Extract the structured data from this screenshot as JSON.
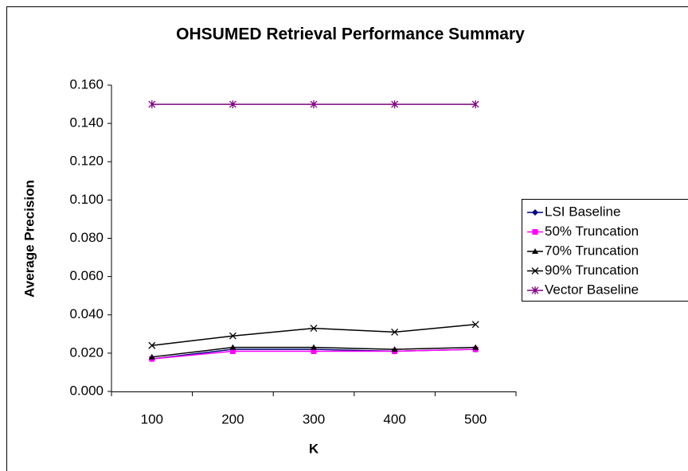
{
  "chart_data": {
    "type": "line",
    "title": "OHSUMED Retrieval Performance Summary",
    "x_label": "K",
    "y_label": "Average Precision",
    "categories": [
      "100",
      "200",
      "300",
      "400",
      "500"
    ],
    "series": [
      {
        "name": "LSI Baseline",
        "color": "#000080",
        "marker": "diamond",
        "values": [
          0.017,
          0.022,
          0.022,
          0.021,
          0.022
        ]
      },
      {
        "name": "50% Truncation",
        "color": "#ff00ff",
        "marker": "square",
        "values": [
          0.017,
          0.021,
          0.021,
          0.021,
          0.022
        ]
      },
      {
        "name": "70% Truncation",
        "color": "#000000",
        "marker": "triangle",
        "values": [
          0.018,
          0.023,
          0.023,
          0.022,
          0.023
        ]
      },
      {
        "name": "90% Truncation",
        "color": "#000000",
        "marker": "x",
        "values": [
          0.024,
          0.029,
          0.033,
          0.031,
          0.035
        ]
      },
      {
        "name": "Vector Baseline",
        "color": "#800080",
        "marker": "asterisk",
        "values": [
          0.15,
          0.15,
          0.15,
          0.15,
          0.15
        ]
      }
    ],
    "ylim": [
      0,
      0.16
    ],
    "yticks": [
      {
        "value": 0,
        "label": "0.000"
      },
      {
        "value": 0.02,
        "label": "0.020"
      },
      {
        "value": 0.04,
        "label": "0.040"
      },
      {
        "value": 0.06,
        "label": "0.060"
      },
      {
        "value": 0.08,
        "label": "0.080"
      },
      {
        "value": 0.1,
        "label": "0.100"
      },
      {
        "value": 0.12,
        "label": "0.120"
      },
      {
        "value": 0.14,
        "label": "0.140"
      },
      {
        "value": 0.16,
        "label": "0.160"
      }
    ],
    "legend": "right",
    "grid": false
  }
}
